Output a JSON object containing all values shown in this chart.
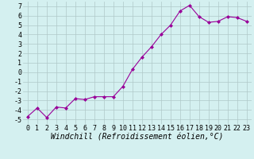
{
  "x": [
    0,
    1,
    2,
    3,
    4,
    5,
    6,
    7,
    8,
    9,
    10,
    11,
    12,
    13,
    14,
    15,
    16,
    17,
    18,
    19,
    20,
    21,
    22,
    23
  ],
  "y": [
    -4.7,
    -3.8,
    -4.8,
    -3.7,
    -3.8,
    -2.8,
    -2.9,
    -2.6,
    -2.6,
    -2.6,
    -1.5,
    0.3,
    1.6,
    2.7,
    4.0,
    5.0,
    6.5,
    7.1,
    5.9,
    5.3,
    5.4,
    5.9,
    5.8,
    5.4
  ],
  "line_color": "#990099",
  "marker": "D",
  "marker_size": 2,
  "bg_color": "#d4f0f0",
  "grid_color": "#b0c8c8",
  "ylim": [
    -5.5,
    7.5
  ],
  "yticks": [
    -5,
    -4,
    -3,
    -2,
    -1,
    0,
    1,
    2,
    3,
    4,
    5,
    6,
    7
  ],
  "xlabel": "Windchill (Refroidissement éolien,°C)",
  "xlabel_fontsize": 7,
  "tick_fontsize": 6,
  "linewidth": 0.8
}
